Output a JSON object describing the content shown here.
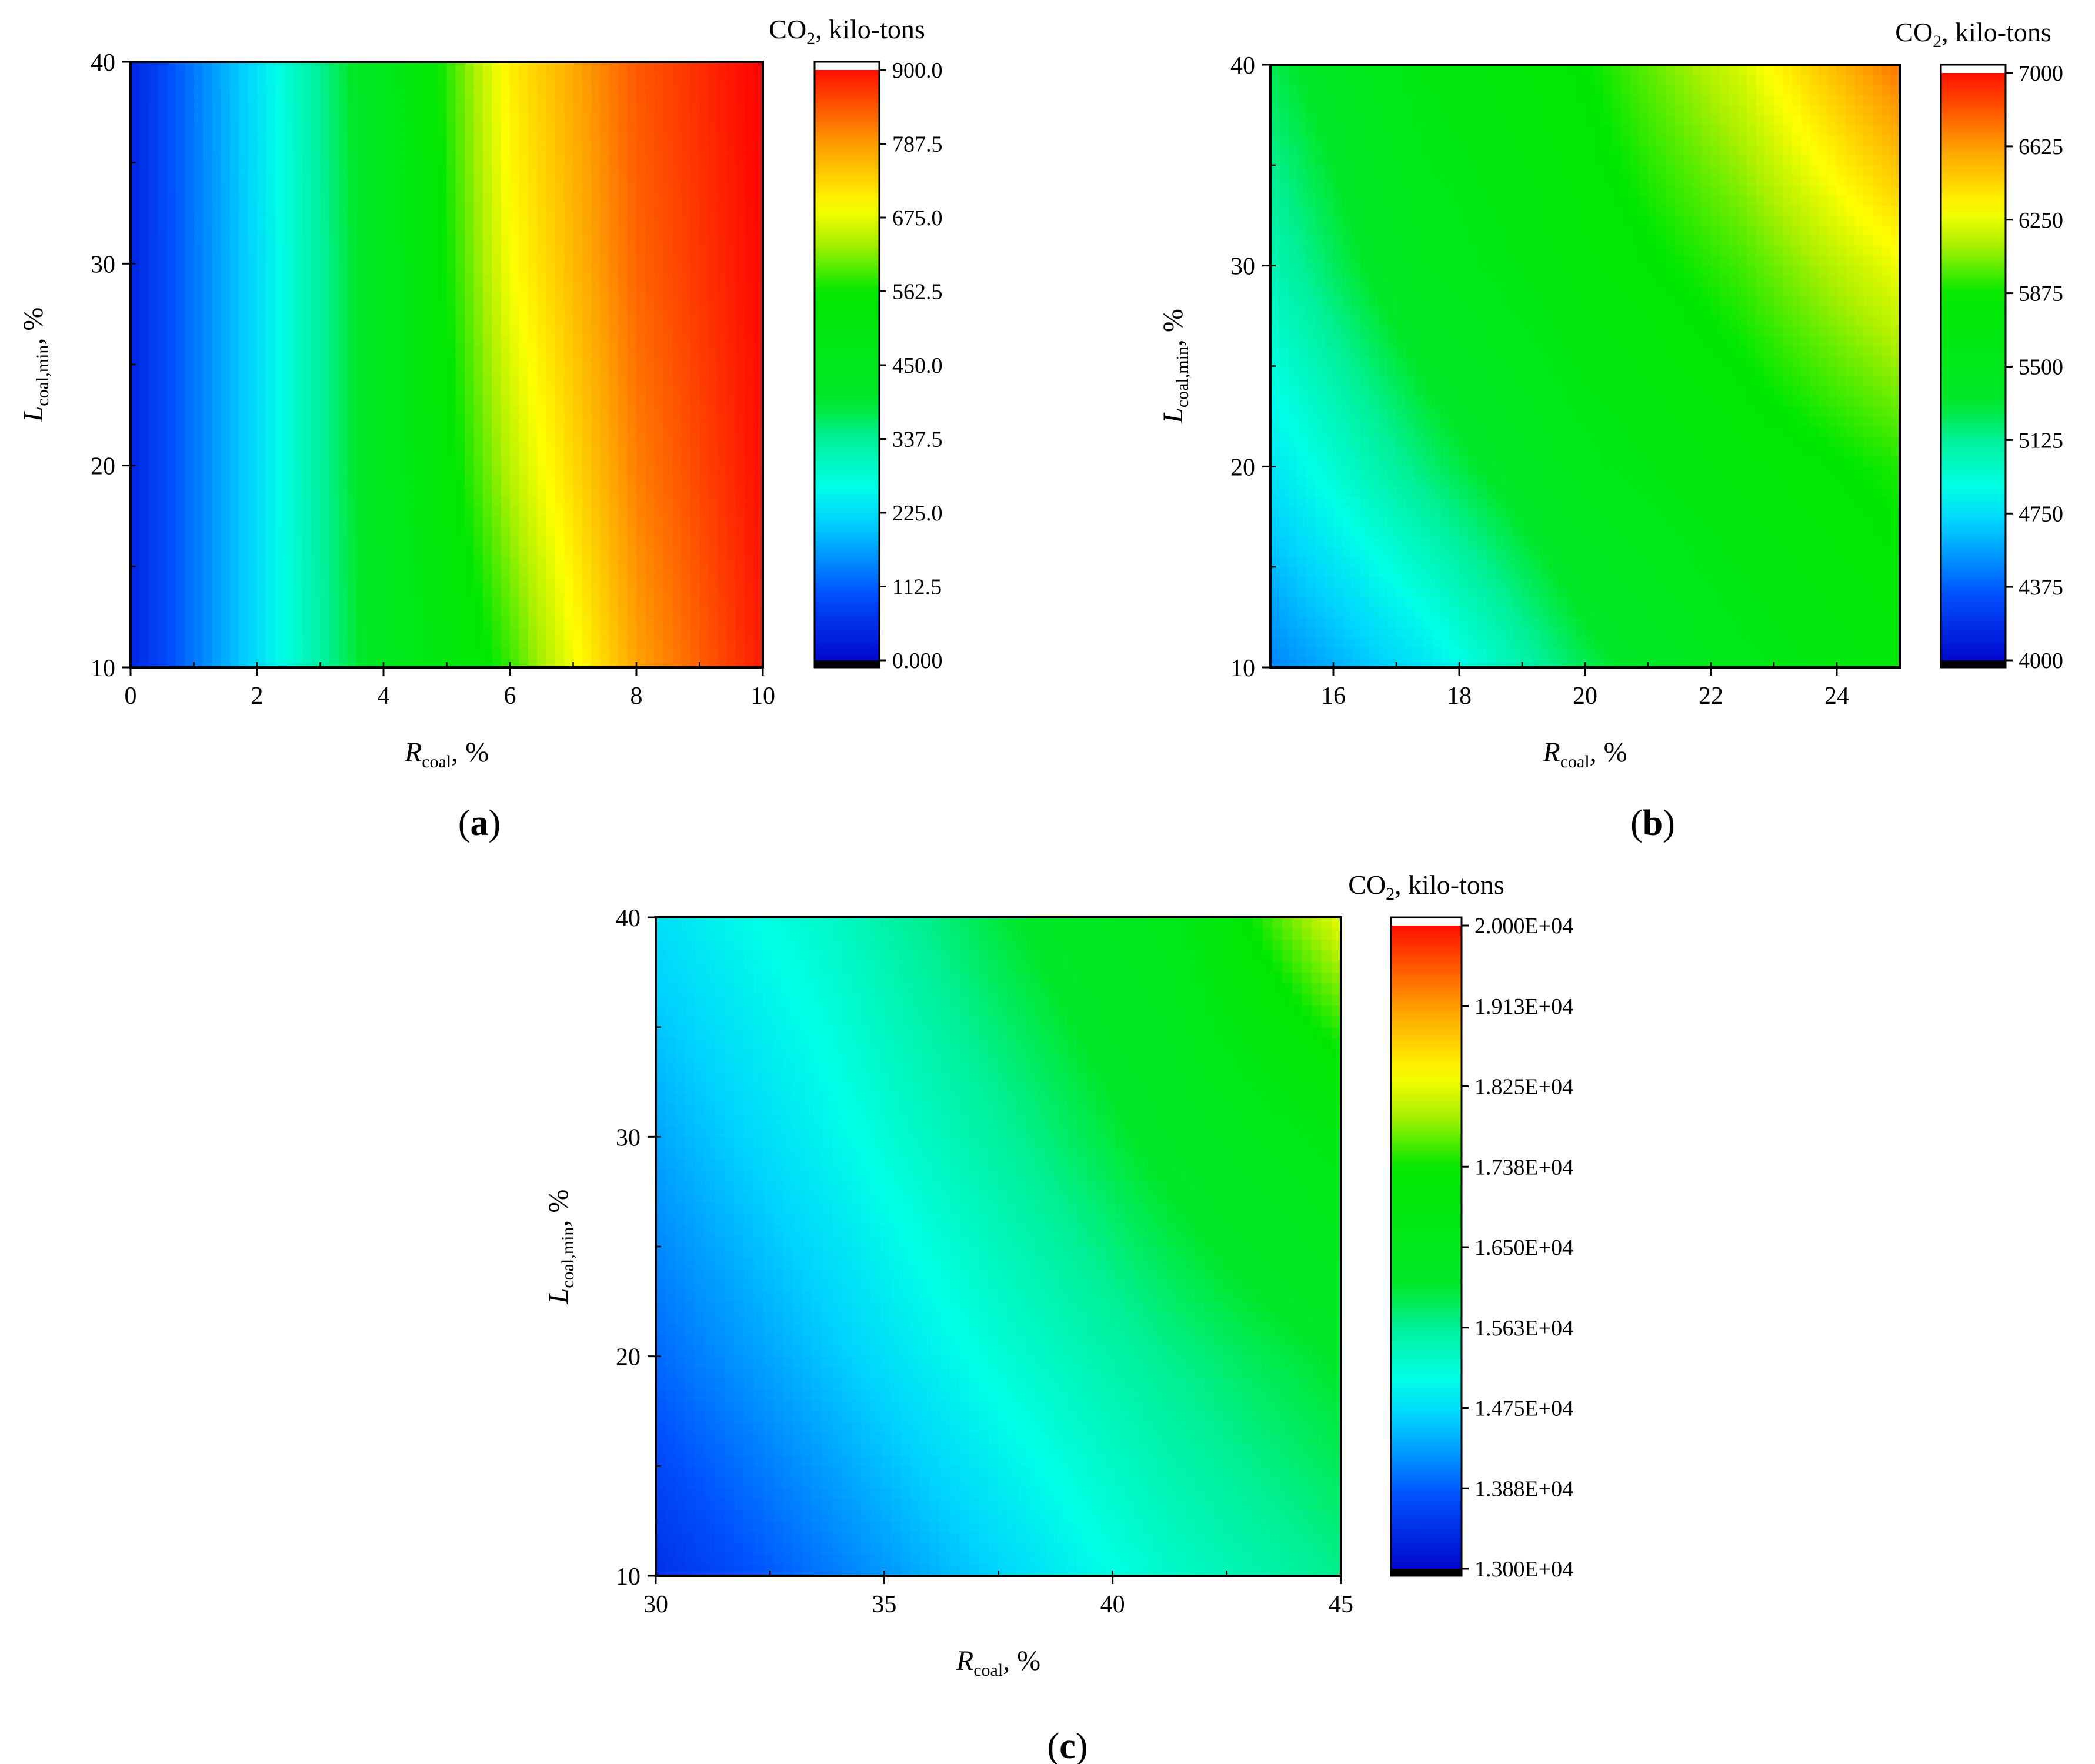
{
  "chart_data": [
    {
      "panel": "a",
      "type": "heatmap",
      "panel_label": {
        "open": "(",
        "letter": "a",
        "close": ")"
      },
      "x": {
        "ticks": [
          0,
          2,
          4,
          6,
          8,
          10
        ],
        "range": [
          0,
          10
        ],
        "label": {
          "main": "R",
          "sub": "coal",
          "suffix": ", %"
        }
      },
      "y": {
        "ticks": [
          10,
          20,
          30,
          40
        ],
        "range": [
          10,
          40
        ],
        "label": {
          "main": "L",
          "sub": "coal,min",
          "suffix": ", %"
        }
      },
      "colorbar": {
        "title": {
          "pre": "CO",
          "sub": "2",
          "post": ", kilo-tons"
        },
        "range": [
          0,
          900
        ],
        "ticks": [
          0,
          112.5,
          225,
          337.5,
          450,
          562.5,
          675,
          787.5,
          900
        ],
        "tick_labels": [
          "0.000",
          "112.5",
          "225.0",
          "337.5",
          "450.0",
          "562.5",
          "675.0",
          "787.5",
          "900.0"
        ]
      },
      "value_grid": {
        "x": [
          0,
          2,
          4,
          6,
          8,
          10
        ],
        "y": [
          10,
          20,
          30,
          40
        ],
        "z": [
          [
            50,
            230,
            430,
            580,
            770,
            880
          ],
          [
            50,
            230,
            440,
            640,
            800,
            890
          ],
          [
            50,
            230,
            440,
            680,
            820,
            895
          ],
          [
            50,
            235,
            450,
            700,
            830,
            900
          ]
        ]
      }
    },
    {
      "panel": "b",
      "type": "heatmap",
      "panel_label": {
        "open": "(",
        "letter": "b",
        "close": ")"
      },
      "x": {
        "ticks": [
          16,
          18,
          20,
          22,
          24
        ],
        "range": [
          15,
          25
        ],
        "label": {
          "main": "R",
          "sub": "coal",
          "suffix": ", %"
        }
      },
      "y": {
        "ticks": [
          10,
          20,
          30,
          40
        ],
        "range": [
          10,
          40
        ],
        "label": {
          "main": "L",
          "sub": "coal,min",
          "suffix": ", %"
        }
      },
      "colorbar": {
        "title": {
          "pre": "CO",
          "sub": "2",
          "post": ", kilo-tons"
        },
        "range": [
          4000,
          7000
        ],
        "ticks": [
          4000,
          4375,
          4750,
          5125,
          5500,
          5875,
          6250,
          6625,
          7000
        ],
        "tick_labels": [
          "4000",
          "4375",
          "4750",
          "5125",
          "5500",
          "5875",
          "6250",
          "6625",
          "7000"
        ]
      },
      "value_grid": {
        "x": [
          15,
          17.5,
          20,
          22.5,
          25
        ],
        "y": [
          10,
          20,
          30,
          40
        ],
        "z": [
          [
            4500,
            4800,
            5250,
            5550,
            5750
          ],
          [
            4800,
            5200,
            5550,
            5750,
            5900
          ],
          [
            5050,
            5500,
            5750,
            5950,
            6250
          ],
          [
            5250,
            5650,
            5850,
            6200,
            6700
          ]
        ]
      }
    },
    {
      "panel": "c",
      "type": "heatmap",
      "panel_label": {
        "open": "(",
        "letter": "c",
        "close": ")"
      },
      "x": {
        "ticks": [
          30,
          35,
          40,
          45
        ],
        "range": [
          30,
          45
        ],
        "label": {
          "main": "R",
          "sub": "coal",
          "suffix": ", %"
        }
      },
      "y": {
        "ticks": [
          10,
          20,
          30,
          40
        ],
        "range": [
          10,
          40
        ],
        "label": {
          "main": "L",
          "sub": "coal,min",
          "suffix": ", %"
        }
      },
      "colorbar": {
        "title": {
          "pre": "CO",
          "sub": "2",
          "post": ", kilo-tons"
        },
        "range": [
          13000,
          20000
        ],
        "ticks": [
          13000,
          13875,
          14750,
          15625,
          16500,
          17375,
          18250,
          19125,
          20000
        ],
        "tick_labels": [
          "1.300E+04",
          "1.388E+04",
          "1.475E+04",
          "1.563E+04",
          "1.650E+04",
          "1.738E+04",
          "1.825E+04",
          "1.913E+04",
          "2.000E+04"
        ]
      },
      "value_grid": {
        "x": [
          30,
          33.75,
          37.5,
          41.25,
          45
        ],
        "y": [
          10,
          20,
          30,
          40
        ],
        "z": [
          [
            13500,
            14100,
            14700,
            15300,
            15700
          ],
          [
            14000,
            14600,
            15200,
            15700,
            16100
          ],
          [
            14400,
            15000,
            15600,
            16200,
            16800
          ],
          [
            14800,
            15300,
            16000,
            16600,
            18200
          ]
        ]
      }
    }
  ]
}
